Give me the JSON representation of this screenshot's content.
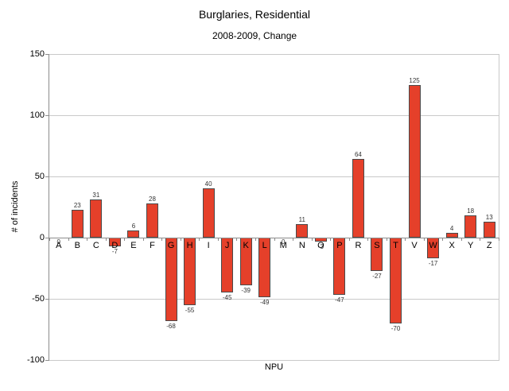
{
  "title": "Burglaries, Residential",
  "subtitle": "2008-2009, Change",
  "chart_data": {
    "type": "bar",
    "title": "Burglaries, Residential",
    "subtitle": "2008-2009, Change",
    "categories": [
      "A",
      "B",
      "C",
      "D",
      "E",
      "F",
      "G",
      "H",
      "I",
      "J",
      "K",
      "L",
      "M",
      "N",
      "O",
      "P",
      "R",
      "S",
      "T",
      "V",
      "W",
      "X",
      "Y",
      "Z"
    ],
    "values": [
      0,
      23,
      31,
      -7,
      6,
      28,
      -68,
      -55,
      40,
      -45,
      -39,
      -49,
      0,
      11,
      -3,
      -47,
      64,
      -27,
      -70,
      125,
      -17,
      4,
      18,
      13
    ],
    "xlabel": "NPU",
    "ylabel": "# of incidents",
    "ylim": [
      -100,
      150
    ],
    "yticks": [
      150,
      100,
      50,
      0,
      -50,
      -100
    ],
    "grid": true,
    "legend": "none",
    "data_labels": true,
    "bar_color": "#e5402a",
    "bar_border_color": "#4a4a4a",
    "gridline_color": "#c9c9c9",
    "axis_color": "#8c8c8c",
    "background_color": "#ffffff"
  }
}
